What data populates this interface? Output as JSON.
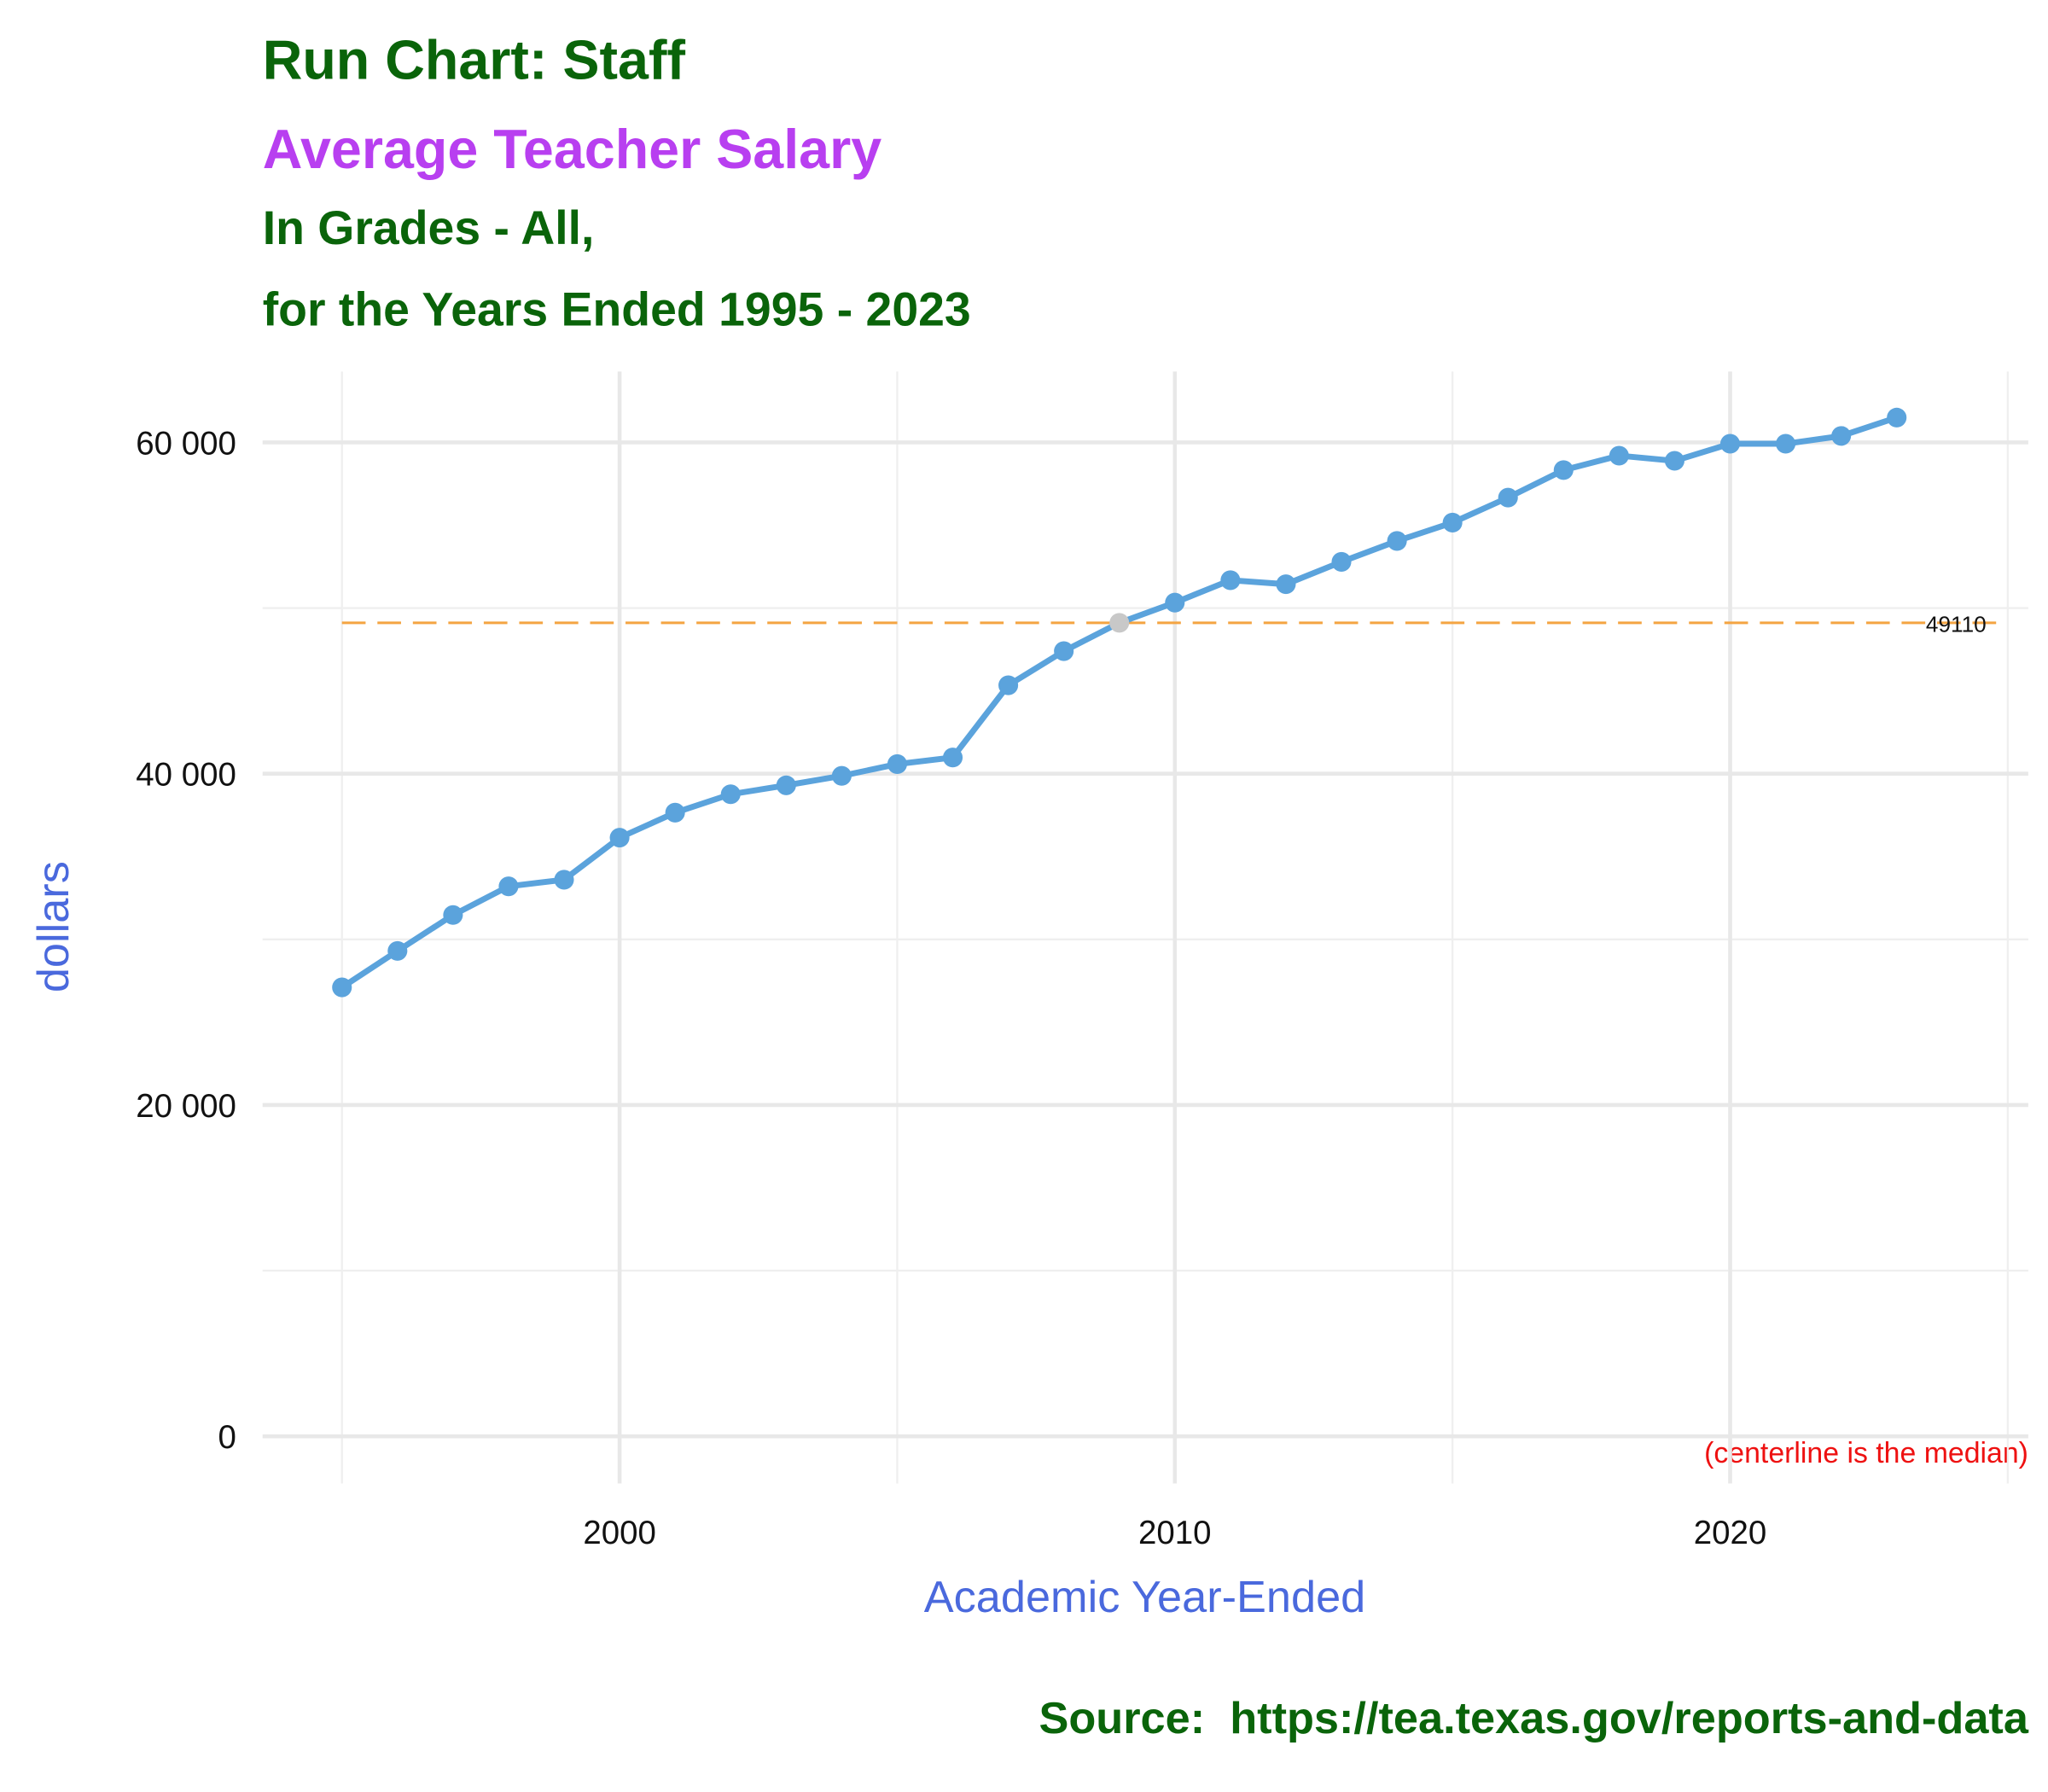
{
  "chart_data": {
    "type": "line",
    "title": "Run Chart: Staff",
    "subtitle": "Average Teacher Salary",
    "subtitle_lines": [
      "In Grades - All,",
      "for the Years Ended 1995 - 2023"
    ],
    "x_label": "Academic Year-Ended",
    "y_label": "dollars",
    "note": "(centerline is the median)",
    "caption": "Source:  https://tea.texas.gov/reports-and-data",
    "x": [
      1995,
      1996,
      1997,
      1998,
      1999,
      2000,
      2001,
      2002,
      2003,
      2004,
      2005,
      2006,
      2007,
      2008,
      2009,
      2010,
      2011,
      2012,
      2013,
      2014,
      2015,
      2016,
      2017,
      2018,
      2019,
      2020,
      2021,
      2022,
      2023
    ],
    "series": [
      {
        "name": "Average Teacher Salary",
        "color": "#5ba3dc",
        "values": [
          27100,
          29300,
          31470,
          33200,
          33600,
          36140,
          37650,
          38760,
          39300,
          39870,
          40580,
          40980,
          45340,
          47400,
          49110,
          50330,
          51680,
          51440,
          52790,
          54050,
          55160,
          56670,
          58330,
          59200,
          58890,
          59920,
          59920,
          60390,
          61500
        ],
        "point_colors": [
          "#5ba3dc",
          "#5ba3dc",
          "#5ba3dc",
          "#5ba3dc",
          "#5ba3dc",
          "#5ba3dc",
          "#5ba3dc",
          "#5ba3dc",
          "#5ba3dc",
          "#5ba3dc",
          "#5ba3dc",
          "#5ba3dc",
          "#5ba3dc",
          "#5ba3dc",
          "#c8c8c8",
          "#5ba3dc",
          "#5ba3dc",
          "#5ba3dc",
          "#5ba3dc",
          "#5ba3dc",
          "#5ba3dc",
          "#5ba3dc",
          "#5ba3dc",
          "#5ba3dc",
          "#5ba3dc",
          "#5ba3dc",
          "#5ba3dc",
          "#5ba3dc",
          "#5ba3dc"
        ]
      }
    ],
    "centerline": {
      "value": 49110,
      "color": "#f4a442"
    },
    "xlim": [
      1993.57,
      2025.37
    ],
    "ylim": [
      -2850,
      64280
    ],
    "xticks": [
      2000,
      2010,
      2020
    ],
    "x_minor_ticks": [
      1995,
      2005,
      2015,
      2025
    ],
    "yticks": [
      0,
      {
        "value": 20000,
        "label": "20 000"
      },
      {
        "value": 40000,
        "label": "40 000"
      },
      {
        "value": 60000,
        "label": "60 000"
      }
    ],
    "y_minor_ticks": [
      10000,
      30000,
      50000
    ],
    "grid": true
  }
}
